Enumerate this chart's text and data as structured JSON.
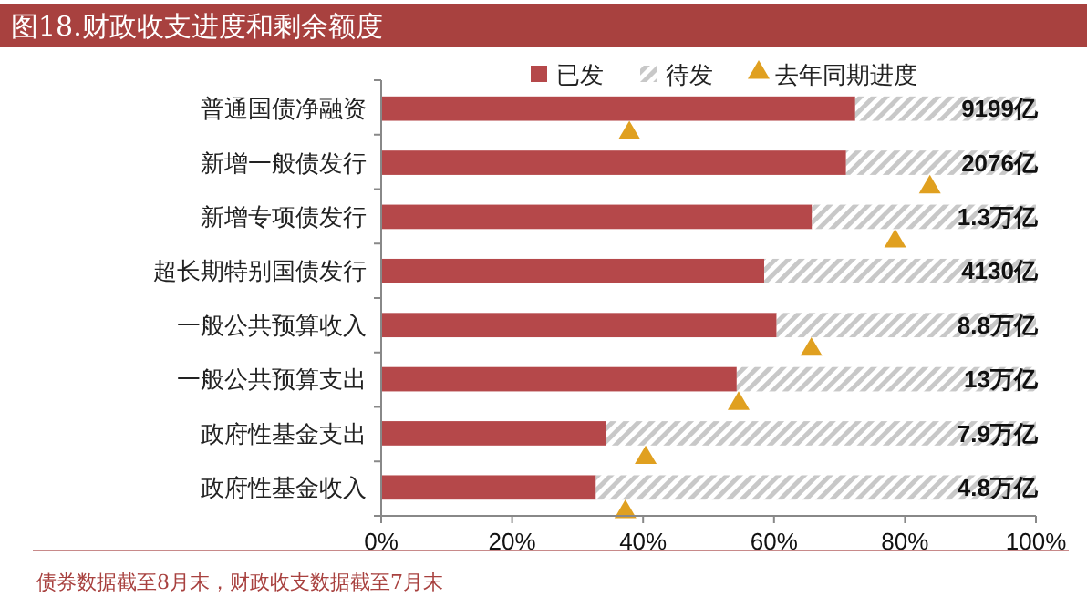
{
  "chart_data": {
    "type": "bar",
    "orientation": "horizontal",
    "stacked": true,
    "title": "图18.财政收支进度和剩余额度",
    "categories": [
      "普通国债净融资",
      "新增一般债发行",
      "新增专项债发行",
      "超长期特别国债发行",
      "一般公共预算收入",
      "一般公共预算支出",
      "政府性基金支出",
      "政府性基金收入"
    ],
    "series": [
      {
        "name": "已发",
        "color": "#b5484a",
        "values": [
          72.4,
          71.0,
          65.8,
          58.5,
          60.4,
          54.3,
          34.3,
          32.8
        ]
      },
      {
        "name": "待发",
        "color": "#c8c8c8",
        "values": [
          27.6,
          29.0,
          34.2,
          41.5,
          39.6,
          45.7,
          65.7,
          67.2
        ]
      },
      {
        "name": "去年同期进度",
        "type": "scatter",
        "marker": "triangle",
        "color": "#e0a020",
        "values": [
          37.9,
          83.8,
          78.5,
          null,
          65.7,
          54.6,
          40.4,
          37.3
        ]
      }
    ],
    "xlim": [
      0,
      100
    ],
    "xticks": [
      {
        "value": 0,
        "label": "0%"
      },
      {
        "value": 20,
        "label": "20%"
      },
      {
        "value": 40,
        "label": "40%"
      },
      {
        "value": 60,
        "label": "60%"
      },
      {
        "value": 80,
        "label": "80%"
      },
      {
        "value": 100,
        "label": "100%"
      }
    ],
    "legend": "top",
    "grid": false,
    "annotations": [
      "9199亿",
      "2076亿",
      "1.3万亿",
      "4130亿",
      "8.8万亿",
      "13万亿",
      "7.9万亿",
      "4.8万亿",
      "债券数据截至8月末，财政收支数据截至7月末"
    ]
  }
}
